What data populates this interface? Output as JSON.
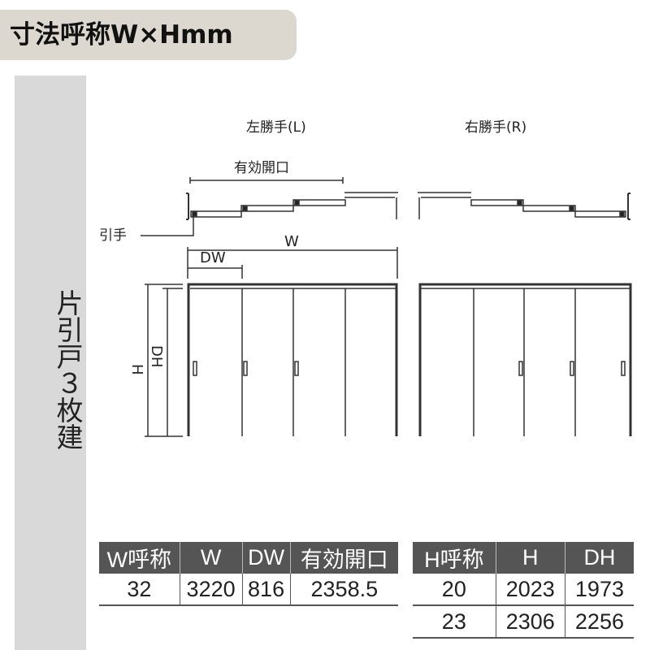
{
  "header": {
    "title": "寸法呼称W×Hmm"
  },
  "side_label": "片引戸３枚建",
  "diagram": {
    "left_title": "左勝手(L)",
    "right_title": "右勝手(R)",
    "effective_opening": "有効開口",
    "pull_handle": "引手",
    "w": "W",
    "dw": "DW",
    "h": "H",
    "dh": "DH"
  },
  "width_table": {
    "headers": [
      "W呼称",
      "W",
      "DW",
      "有効開口"
    ],
    "rows": [
      [
        "32",
        "3220",
        "816",
        "2358.5"
      ]
    ]
  },
  "height_table": {
    "headers": [
      "H呼称",
      "H",
      "DH"
    ],
    "rows": [
      [
        "20",
        "2023",
        "1973"
      ],
      [
        "23",
        "2306",
        "2256"
      ]
    ]
  }
}
